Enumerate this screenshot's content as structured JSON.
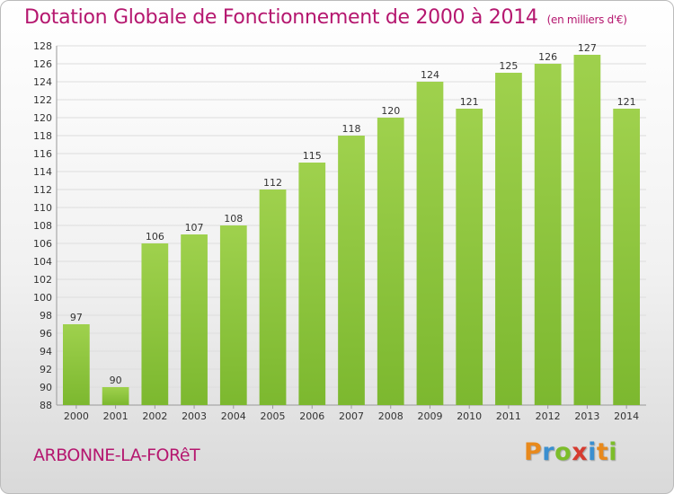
{
  "header": {
    "title": "Dotation Globale de Fonctionnement de 2000 à 2014",
    "unit": "(en milliers d'€)"
  },
  "footer": {
    "commune": "ARBONNE-LA-FORêT",
    "logo_letters": [
      "P",
      "r",
      "o",
      "x",
      "i",
      "t",
      "i"
    ]
  },
  "chart_data": {
    "type": "bar",
    "title": "Dotation Globale de Fonctionnement de 2000 à 2014",
    "subtitle": "(en milliers d'€)",
    "xlabel": "",
    "ylabel": "",
    "categories": [
      "2000",
      "2001",
      "2002",
      "2003",
      "2004",
      "2005",
      "2006",
      "2007",
      "2008",
      "2009",
      "2010",
      "2011",
      "2012",
      "2013",
      "2014"
    ],
    "values": [
      97,
      90,
      106,
      107,
      108,
      112,
      115,
      118,
      120,
      124,
      121,
      125,
      126,
      127,
      121
    ],
    "ylim": [
      88,
      128
    ],
    "yticks": [
      88,
      90,
      92,
      94,
      96,
      98,
      100,
      102,
      104,
      106,
      108,
      110,
      112,
      114,
      116,
      118,
      120,
      122,
      124,
      126,
      128
    ],
    "grid": true,
    "data_labels": true,
    "bar_color": "#7cb82f",
    "bar_color_light": "#9fd14d"
  }
}
